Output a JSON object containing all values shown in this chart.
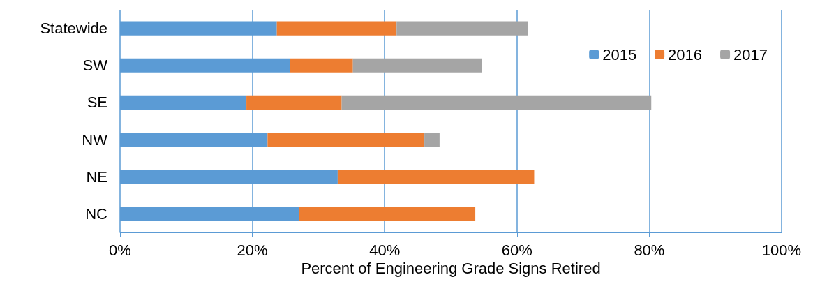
{
  "chart_data": {
    "type": "bar",
    "orientation": "horizontal",
    "stacked": true,
    "xlabel": "Percent of Engineering Grade Signs Retired",
    "categories": [
      "Statewide",
      "SW",
      "SE",
      "NW",
      "NE",
      "NC"
    ],
    "series": [
      {
        "name": "2015",
        "color": "#5b9bd5",
        "values": [
          23.7,
          25.7,
          19.1,
          22.3,
          32.9,
          27.1
        ]
      },
      {
        "name": "2016",
        "color": "#ed7d31",
        "values": [
          18.1,
          9.5,
          14.4,
          23.7,
          29.7,
          26.6
        ]
      },
      {
        "name": "2017",
        "color": "#a5a5a5",
        "values": [
          19.9,
          19.5,
          46.8,
          2.3,
          null,
          null
        ]
      }
    ],
    "xlim": [
      0,
      100
    ],
    "xticks": [
      {
        "value": 0,
        "label": "0%"
      },
      {
        "value": 20,
        "label": "20%"
      },
      {
        "value": 40,
        "label": "40%"
      },
      {
        "value": 60,
        "label": "60%"
      },
      {
        "value": 80,
        "label": "80%"
      },
      {
        "value": 100,
        "label": "100%"
      }
    ],
    "grid": "x",
    "legend": "top right"
  }
}
